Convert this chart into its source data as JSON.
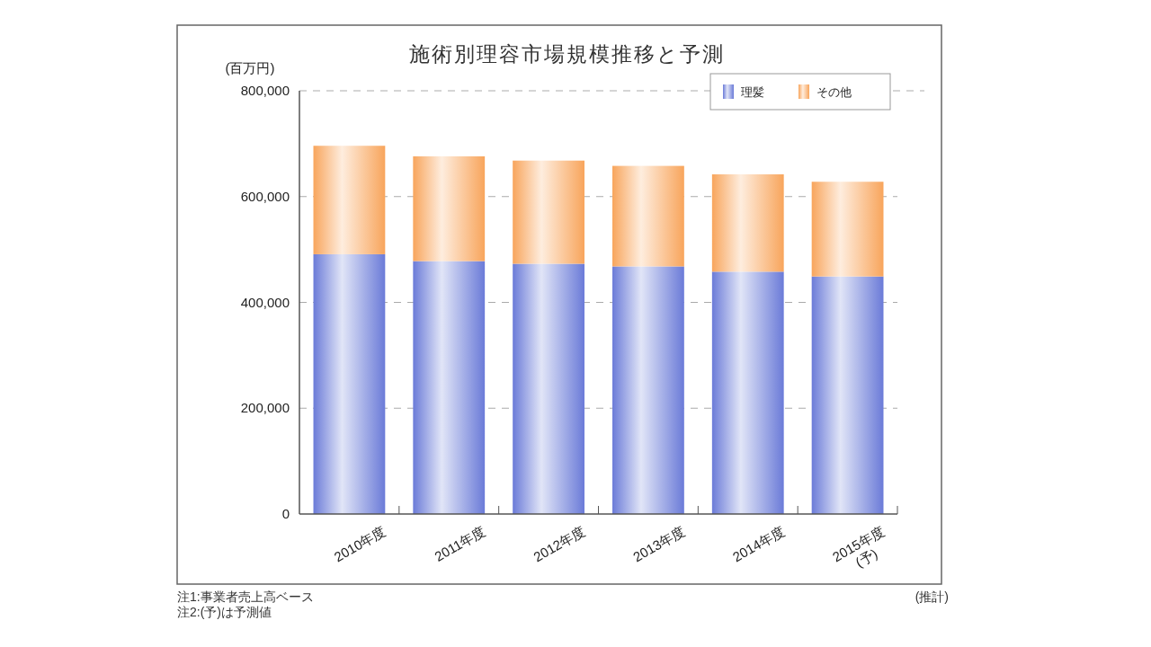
{
  "chart_data": {
    "type": "bar",
    "title": "施術別理容市場規模推移と予測",
    "ylabel": "(百万円)",
    "categories": [
      "2010年度",
      "2011年度",
      "2012年度",
      "2013年度",
      "2014年度",
      "2015年度\n(予)"
    ],
    "stacked": true,
    "series": [
      {
        "name": "理髪",
        "color": "#6b7bd8",
        "values": [
          491000,
          478000,
          473000,
          468000,
          458000,
          449000
        ]
      },
      {
        "name": "その他",
        "color": "#f8a55c",
        "values": [
          205000,
          198000,
          195000,
          190000,
          184000,
          179000
        ]
      }
    ],
    "ylim": [
      0,
      800000
    ],
    "yticks": [
      0,
      {
        "value": 200000,
        "label": "200,000"
      },
      {
        "value": 400000,
        "label": "400,000"
      },
      {
        "value": 600000,
        "label": "600,000"
      },
      {
        "value": 800000,
        "label": "800,000"
      }
    ],
    "grid": "y",
    "legend": "top right",
    "annotations": [
      "注1:事業者売上高ベース",
      "注2:(予)は予測値",
      "(推計)"
    ]
  }
}
